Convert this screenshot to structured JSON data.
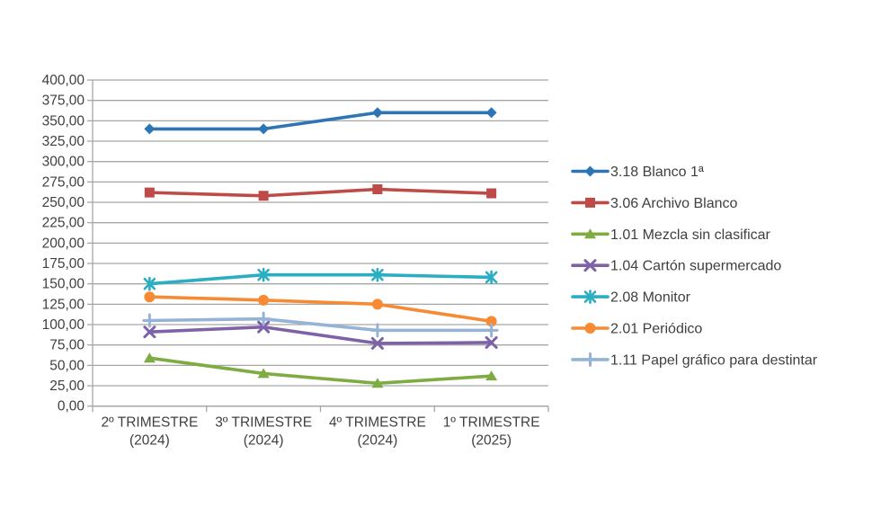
{
  "page": {
    "background": "#FFFFFF"
  },
  "colors": {
    "grid": "#A6A6A6",
    "axis": "#A6A6A6",
    "text": "#3F3F3F"
  },
  "chart_data": {
    "type": "line",
    "title": "",
    "xlabel": "",
    "ylabel": "",
    "grid": true,
    "legend_position": "right",
    "categories": [
      "2º TRIMESTRE (2024)",
      "3º TRIMESTRE (2024)",
      "4º TRIMESTRE (2024)",
      "1º TRIMESTRE (2025)"
    ],
    "y_axis": {
      "min": 0,
      "max": 400,
      "step": 25,
      "tick_labels_top_to_bottom": [
        "400,00",
        "375,00",
        "350,00",
        "325,00",
        "300,00",
        "275,00",
        "250,00",
        "225,00",
        "200,00",
        "175,00",
        "150,00",
        "125,00",
        "100,00",
        "75,00",
        "50,00",
        "25,00",
        "0,00"
      ]
    },
    "series": [
      {
        "name": "3.18 Blanco 1ª",
        "color": "#2E75B6",
        "marker": "diamond",
        "values": [
          340,
          340,
          360,
          360
        ]
      },
      {
        "name": "3.06 Archivo Blanco",
        "color": "#BE4B48",
        "marker": "square",
        "values": [
          262,
          258,
          266,
          261
        ]
      },
      {
        "name": "1.01 Mezcla sin clasificar",
        "color": "#7EAC42",
        "marker": "triangle",
        "values": [
          59,
          40,
          28,
          37
        ]
      },
      {
        "name": "1.04 Cartón supermercado",
        "color": "#7D62A8",
        "marker": "x",
        "values": [
          91,
          97,
          77,
          78
        ]
      },
      {
        "name": "2.08 Monitor",
        "color": "#2BAEC2",
        "marker": "asterisk",
        "values": [
          150,
          161,
          161,
          158
        ]
      },
      {
        "name": "2.01 Periódico",
        "color": "#F68B33",
        "marker": "circle",
        "values": [
          134,
          130,
          125,
          104
        ]
      },
      {
        "name": "1.11 Papel gráfico para destintar",
        "color": "#95B3D7",
        "marker": "plus",
        "values": [
          105,
          107,
          93,
          93
        ]
      }
    ]
  }
}
